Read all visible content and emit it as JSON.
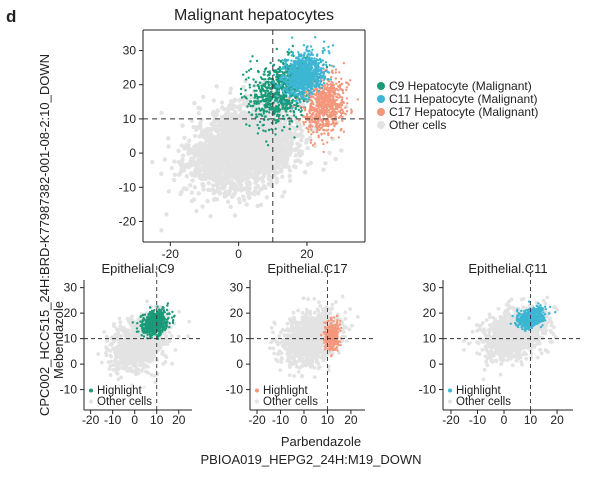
{
  "panel_letter": "d",
  "axis_titles": {
    "y_outer": "CPC002_HCC515_24H:BRD-K77987382-001-08-2:10_DOWN",
    "y_inner": "Mebendazole",
    "x_inner": "Parbendazole",
    "x_outer": "PBIOA019_HEPG2_24H:M19_DOWN"
  },
  "colors": {
    "C9": "#1a9a79",
    "C11": "#3cb6d3",
    "C17": "#f4977c",
    "other": "#e3e3e3",
    "threshold_line": "#333333"
  },
  "chart_data": [
    {
      "id": "main",
      "type": "scatter",
      "title": "Malignant hepatocytes",
      "xlabel": "",
      "ylabel": "",
      "xlim": [
        -28,
        37
      ],
      "ylim": [
        -26,
        36
      ],
      "xticks": [
        -20,
        0,
        20
      ],
      "yticks": [
        -20,
        -10,
        0,
        10,
        20,
        30
      ],
      "threshold": {
        "x": 10,
        "y": 10
      },
      "legend_position": "right",
      "legend": [
        {
          "label": "C9 Hepatocyte (Malignant)",
          "color_key": "C9"
        },
        {
          "label": "C11 Hepatocyte (Malignant)",
          "color_key": "C11"
        },
        {
          "label": "C17 Hepatocyte (Malignant)",
          "color_key": "C17"
        },
        {
          "label": "Other cells",
          "color_key": "other"
        }
      ],
      "series": [
        {
          "name": "Other cells",
          "color_key": "other",
          "center": [
            2,
            2
          ],
          "spread": [
            13,
            10
          ],
          "n": 2600
        },
        {
          "name": "C9 Hepatocyte (Malignant)",
          "color_key": "C9",
          "center": [
            12,
            18
          ],
          "spread": [
            8,
            7
          ],
          "n": 750
        },
        {
          "name": "C17 Hepatocyte (Malignant)",
          "color_key": "C17",
          "center": [
            25,
            14
          ],
          "spread": [
            5,
            7
          ],
          "n": 650
        },
        {
          "name": "C11 Hepatocyte (Malignant)",
          "color_key": "C11",
          "center": [
            19,
            23
          ],
          "spread": [
            5,
            5
          ],
          "n": 900
        }
      ]
    },
    {
      "id": "c9",
      "type": "scatter",
      "title": "Epithelial.C9",
      "xlim": [
        -23,
        26
      ],
      "ylim": [
        -18,
        33
      ],
      "xticks": [
        -20,
        -10,
        0,
        10,
        20
      ],
      "yticks": [
        -10,
        0,
        10,
        20,
        30
      ],
      "threshold": {
        "x": 10,
        "y": 10
      },
      "legend_position": "bottom-left",
      "legend": [
        {
          "label": "Highlight",
          "color_key": "C9"
        },
        {
          "label": "Other cells",
          "color_key": "other"
        }
      ],
      "series": [
        {
          "name": "Other cells",
          "color_key": "other",
          "center": [
            2,
            8
          ],
          "spread": [
            10,
            8
          ],
          "n": 1100
        },
        {
          "name": "Highlight",
          "color_key": "C9",
          "center": [
            9,
            16
          ],
          "spread": [
            5,
            4
          ],
          "n": 650
        }
      ]
    },
    {
      "id": "c17",
      "type": "scatter",
      "title": "Epithelial.C17",
      "xlim": [
        -23,
        26
      ],
      "ylim": [
        -18,
        33
      ],
      "xticks": [
        -20,
        -10,
        0,
        10,
        20
      ],
      "yticks": [
        -10,
        0,
        10,
        20,
        30
      ],
      "threshold": {
        "x": 10,
        "y": 10
      },
      "legend_position": "bottom-left",
      "legend": [
        {
          "label": "Highlight",
          "color_key": "C17"
        },
        {
          "label": "Other cells",
          "color_key": "other"
        }
      ],
      "series": [
        {
          "name": "Other cells",
          "color_key": "other",
          "center": [
            3,
            10
          ],
          "spread": [
            10,
            8
          ],
          "n": 1100
        },
        {
          "name": "Highlight",
          "color_key": "C17",
          "center": [
            12,
            11
          ],
          "spread": [
            2.5,
            5
          ],
          "n": 300
        }
      ]
    },
    {
      "id": "c11",
      "type": "scatter",
      "title": "Epithelial.C11",
      "xlim": [
        -23,
        26
      ],
      "ylim": [
        -18,
        33
      ],
      "xticks": [
        -20,
        -10,
        0,
        10,
        20
      ],
      "yticks": [
        -10,
        0,
        10,
        20,
        30
      ],
      "threshold": {
        "x": 10,
        "y": 10
      },
      "legend_position": "bottom-left",
      "legend": [
        {
          "label": "Highlight",
          "color_key": "C11"
        },
        {
          "label": "Other cells",
          "color_key": "other"
        }
      ],
      "series": [
        {
          "name": "Other cells",
          "color_key": "other",
          "center": [
            4,
            12
          ],
          "spread": [
            10,
            8
          ],
          "n": 1100
        },
        {
          "name": "Highlight",
          "color_key": "C11",
          "center": [
            10,
            18
          ],
          "spread": [
            4,
            3
          ],
          "n": 600
        }
      ]
    }
  ]
}
